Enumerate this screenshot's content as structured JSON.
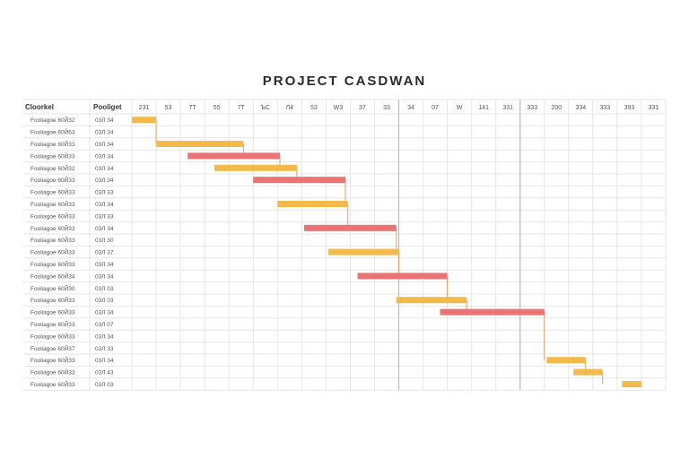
{
  "title": "PROJECT CASDWAN",
  "colors": {
    "yellow": "#f3b94b",
    "red": "#ec7373",
    "grid": "#e6e6e6",
    "milestone": "#bcbcbc",
    "connector": "#e2a060"
  },
  "chart_data": {
    "type": "gantt",
    "title": "PROJECT CASDWAN",
    "columns": [
      "Cloorkel",
      "Pooliget"
    ],
    "timeline_labels": [
      "231",
      "53",
      "7T",
      "55",
      "7T",
      "ЪC",
      "Л4",
      "53",
      "W3",
      "37",
      "33",
      "34",
      "07",
      "W",
      "141",
      "331",
      "333",
      "200",
      "334",
      "333",
      "393",
      "331"
    ],
    "milestones": [
      11,
      16
    ],
    "tasks": [
      {
        "name": "Fooliagoe 60Й32",
        "value": "03Л 34",
        "start": 0,
        "end": 1,
        "color": "yellow"
      },
      {
        "name": "Fooliagoe 60Й63",
        "value": "03Л 34",
        "start": 0,
        "end": 0,
        "color": "yellow"
      },
      {
        "name": "Fooliagoe 60Й33",
        "value": "03Л 34",
        "start": 1,
        "end": 4.6,
        "color": "yellow"
      },
      {
        "name": "Fooliagoe 60Й33",
        "value": "03Л 34",
        "start": 2.3,
        "end": 6.1,
        "color": "red"
      },
      {
        "name": "Fooliagoe 60Й32",
        "value": "03Л 34",
        "start": 3.4,
        "end": 6.8,
        "color": "yellow"
      },
      {
        "name": "Fooliagoe 60Й33",
        "value": "03Л 34",
        "start": 5.0,
        "end": 8.8,
        "color": "red"
      },
      {
        "name": "Fooliagoe 60Й33",
        "value": "03Л 33",
        "start": 0,
        "end": 0,
        "color": "yellow"
      },
      {
        "name": "Fooliagoe 60Й33",
        "value": "03Л 34",
        "start": 6.0,
        "end": 8.9,
        "color": "yellow"
      },
      {
        "name": "Fooliagoe 60Й33",
        "value": "03Л 33",
        "start": 0,
        "end": 0,
        "color": "yellow"
      },
      {
        "name": "Fooliagoe 60Й33",
        "value": "03Л 34",
        "start": 7.1,
        "end": 10.9,
        "color": "red"
      },
      {
        "name": "Fooliagoe 60Й33",
        "value": "03Л 30",
        "start": 0,
        "end": 0,
        "color": "yellow"
      },
      {
        "name": "Fooliagoe 60Й33",
        "value": "03Л 37",
        "start": 8.1,
        "end": 11.0,
        "color": "yellow"
      },
      {
        "name": "Fooliagoe 60Й33",
        "value": "03Л 34",
        "start": 0,
        "end": 0,
        "color": "yellow"
      },
      {
        "name": "Fooliagoe 60Й34",
        "value": "03Л 34",
        "start": 9.3,
        "end": 13.0,
        "color": "red"
      },
      {
        "name": "Fooliagoe 60Й30",
        "value": "03Л 03",
        "start": 0,
        "end": 0,
        "color": "yellow"
      },
      {
        "name": "Fooliagoe 60Й33",
        "value": "03Л 03",
        "start": 10.9,
        "end": 13.8,
        "color": "yellow"
      },
      {
        "name": "Fooliagoe 60Й33",
        "value": "03Л 34",
        "start": 12.7,
        "end": 17.0,
        "color": "red"
      },
      {
        "name": "Fooliagoe 60Й33",
        "value": "03Л 07",
        "start": 0,
        "end": 0,
        "color": "yellow"
      },
      {
        "name": "Fooliagoe 60Й33",
        "value": "03Л 34",
        "start": 0,
        "end": 0,
        "color": "yellow"
      },
      {
        "name": "Fooliagoe 60Й37",
        "value": "03Л 33",
        "start": 0,
        "end": 0,
        "color": "yellow"
      },
      {
        "name": "Fooliagoe 60Й33",
        "value": "03Л 34",
        "start": 17.1,
        "end": 18.7,
        "color": "yellow"
      },
      {
        "name": "Fooliagoe 60Й33",
        "value": "03Л 43",
        "start": 18.2,
        "end": 19.4,
        "color": "yellow"
      },
      {
        "name": "Fooliagoe 60Й33",
        "value": "03Л 03",
        "start": 20.2,
        "end": 21.0,
        "color": "yellow"
      }
    ]
  }
}
